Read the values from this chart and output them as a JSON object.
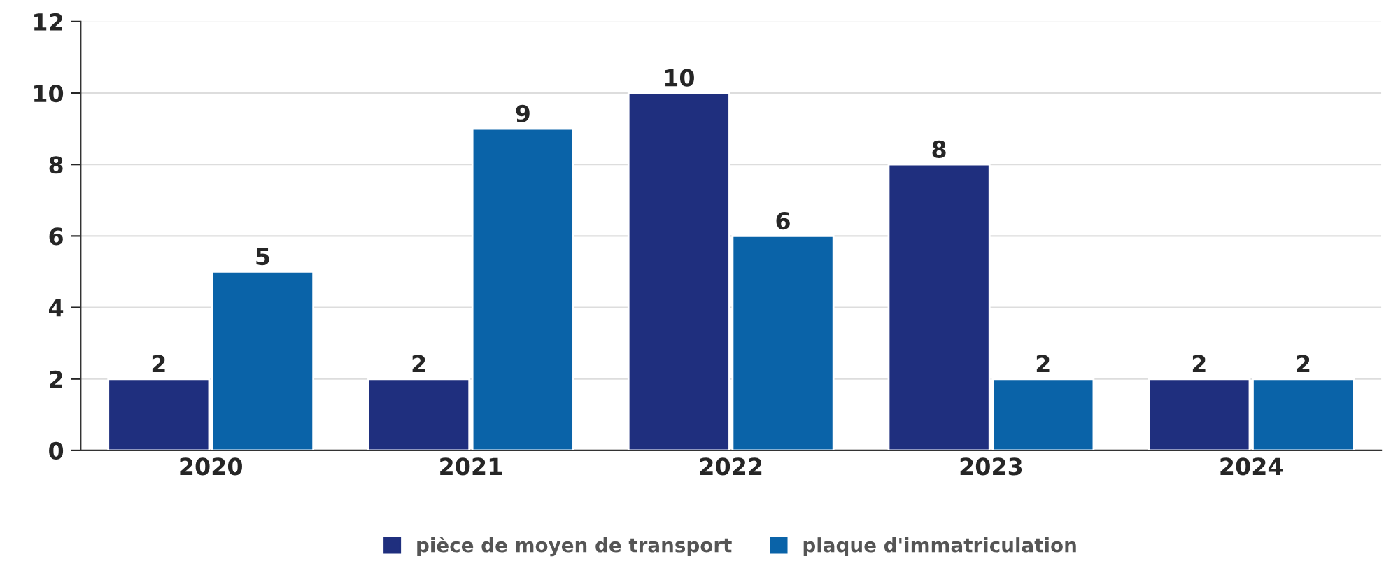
{
  "chart_data": {
    "type": "bar",
    "categories": [
      "2020",
      "2021",
      "2022",
      "2023",
      "2024"
    ],
    "series": [
      {
        "name": "pièce de moyen de transport",
        "color": "#1f2f7e",
        "values": [
          2,
          2,
          10,
          8,
          2
        ]
      },
      {
        "name": "plaque d'immatriculation",
        "color": "#0a63a8",
        "values": [
          5,
          9,
          6,
          2,
          2
        ]
      }
    ],
    "ylim": [
      0,
      12
    ],
    "yticks": [
      0,
      2,
      4,
      6,
      8,
      10,
      12
    ],
    "grid": "y",
    "legend": "bottom",
    "data_labels": true
  }
}
